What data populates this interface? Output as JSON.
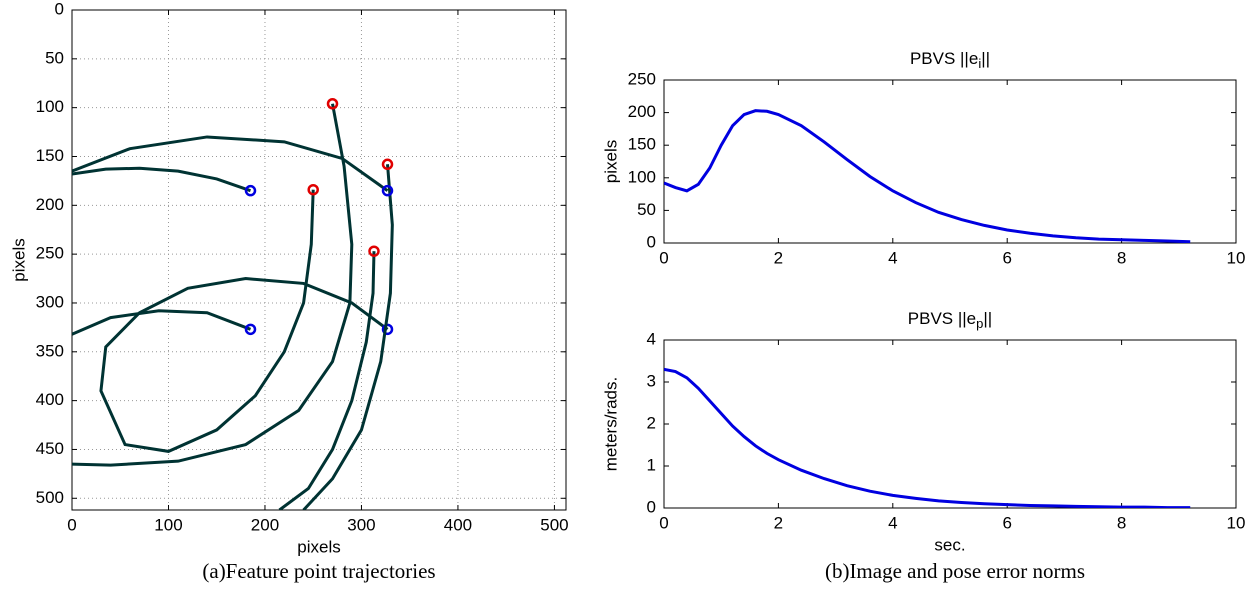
{
  "chart_data": [
    {
      "type": "line",
      "xlabel": "pixels",
      "ylabel": "pixels",
      "caption": "(a)Feature point trajectories",
      "xlim": [
        0,
        512
      ],
      "ylim": [
        512,
        0
      ],
      "xticks": [
        0,
        100,
        200,
        300,
        400,
        500
      ],
      "yticks": [
        0,
        50,
        100,
        150,
        200,
        250,
        300,
        350,
        400,
        450,
        500
      ],
      "grid": true,
      "line_color": "#003333",
      "start_color": "#e00000",
      "end_color": "#0000e0",
      "series": [
        {
          "x": [
            250,
            248,
            240,
            220,
            190,
            150,
            100,
            55,
            30,
            35,
            70,
            120,
            180,
            240,
            290,
            327
          ],
          "values": [
            184,
            240,
            300,
            350,
            395,
            430,
            452,
            445,
            390,
            345,
            310,
            285,
            275,
            280,
            300,
            327
          ]
        },
        {
          "x": [
            313,
            312,
            305,
            290,
            270,
            245,
            215,
            null,
            0,
            40,
            90,
            140,
            185
          ],
          "values": [
            247,
            290,
            340,
            400,
            450,
            490,
            512,
            null,
            332,
            315,
            308,
            310,
            327
          ]
        },
        {
          "x": [
            327,
            332,
            330,
            320,
            300,
            270,
            240,
            null,
            0,
            35,
            70,
            110,
            150,
            185
          ],
          "values": [
            158,
            220,
            290,
            360,
            430,
            480,
            512,
            null,
            168,
            163,
            162,
            165,
            173,
            185
          ]
        },
        {
          "x": [
            270,
            282,
            290,
            288,
            270,
            235,
            180,
            110,
            40,
            0,
            null,
            0,
            60,
            140,
            220,
            280,
            327
          ],
          "values": [
            96,
            160,
            240,
            300,
            360,
            410,
            445,
            462,
            466,
            465,
            null,
            165,
            142,
            130,
            135,
            152,
            185
          ]
        }
      ]
    },
    {
      "type": "line",
      "title": {
        "text": "PBVS ||e",
        "subscript": "i",
        "suffix": "||"
      },
      "ylabel": "pixels",
      "xlim": [
        0,
        10
      ],
      "ylim": [
        0,
        250
      ],
      "xticks": [
        0,
        2,
        4,
        6,
        8,
        10
      ],
      "yticks": [
        0,
        50,
        100,
        150,
        200,
        250
      ],
      "grid": false,
      "color": "#0000e0",
      "x": [
        0,
        0.2,
        0.4,
        0.6,
        0.8,
        1.0,
        1.2,
        1.4,
        1.6,
        1.8,
        2.0,
        2.4,
        2.8,
        3.2,
        3.6,
        4.0,
        4.4,
        4.8,
        5.2,
        5.6,
        6.0,
        6.4,
        6.8,
        7.2,
        7.6,
        8.0,
        8.4,
        8.8,
        9.2
      ],
      "values": [
        92,
        85,
        80,
        90,
        115,
        150,
        180,
        197,
        203,
        202,
        197,
        180,
        155,
        128,
        102,
        80,
        62,
        47,
        36,
        27,
        20,
        15,
        11,
        8,
        6,
        5,
        4,
        3,
        2
      ]
    },
    {
      "type": "line",
      "title": {
        "text": "PBVS ||e",
        "subscript": "p",
        "suffix": "||"
      },
      "ylabel": "meters/rads.",
      "xlabel": "sec.",
      "caption": "(b)Image and pose error norms",
      "xlim": [
        0,
        10
      ],
      "ylim": [
        0,
        4
      ],
      "xticks": [
        0,
        2,
        4,
        6,
        8,
        10
      ],
      "yticks": [
        0,
        1,
        2,
        3,
        4
      ],
      "grid": false,
      "color": "#0000e0",
      "x": [
        0,
        0.2,
        0.4,
        0.6,
        0.8,
        1.0,
        1.2,
        1.4,
        1.6,
        1.8,
        2.0,
        2.4,
        2.8,
        3.2,
        3.6,
        4.0,
        4.4,
        4.8,
        5.2,
        5.6,
        6.0,
        6.4,
        6.8,
        7.2,
        7.6,
        8.0,
        8.4,
        8.8,
        9.2
      ],
      "values": [
        3.3,
        3.25,
        3.1,
        2.85,
        2.55,
        2.25,
        1.95,
        1.7,
        1.48,
        1.3,
        1.15,
        0.9,
        0.7,
        0.53,
        0.4,
        0.3,
        0.23,
        0.17,
        0.13,
        0.1,
        0.08,
        0.06,
        0.05,
        0.04,
        0.03,
        0.02,
        0.02,
        0.01,
        0.01
      ]
    }
  ]
}
